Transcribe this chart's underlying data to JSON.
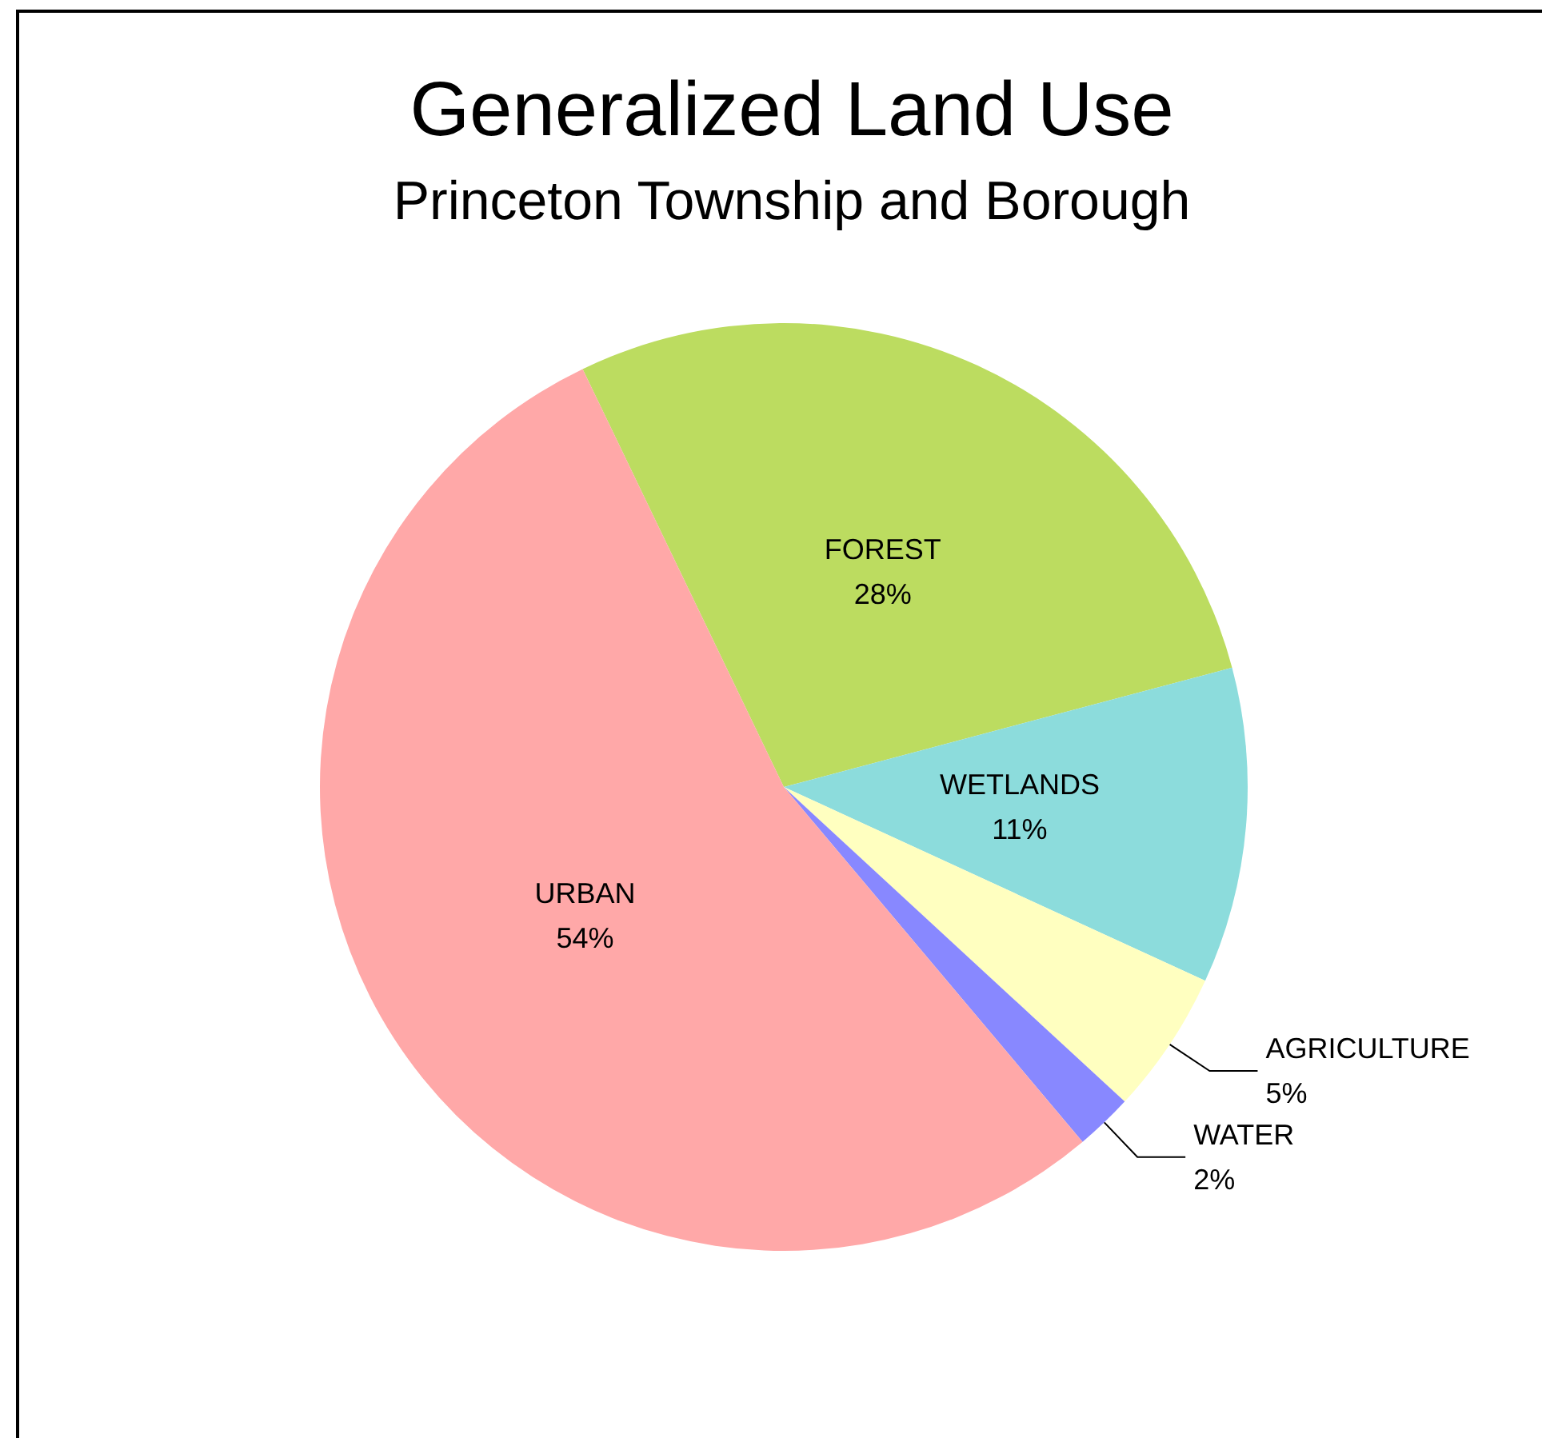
{
  "chart_data": {
    "type": "pie",
    "title": "Generalized Land Use",
    "subtitle": "Princeton Township and Borough",
    "categories": [
      "FOREST",
      "WETLANDS",
      "AGRICULTURE",
      "WATER",
      "URBAN"
    ],
    "values": [
      28,
      11,
      5,
      2,
      54
    ],
    "value_labels": [
      "28%",
      "11%",
      "5%",
      "2%",
      "54%"
    ],
    "colors": [
      "#bcdc60",
      "#8cdcdc",
      "#ffffc0",
      "#8888ff",
      "#ffa8a8"
    ],
    "legend": false
  }
}
